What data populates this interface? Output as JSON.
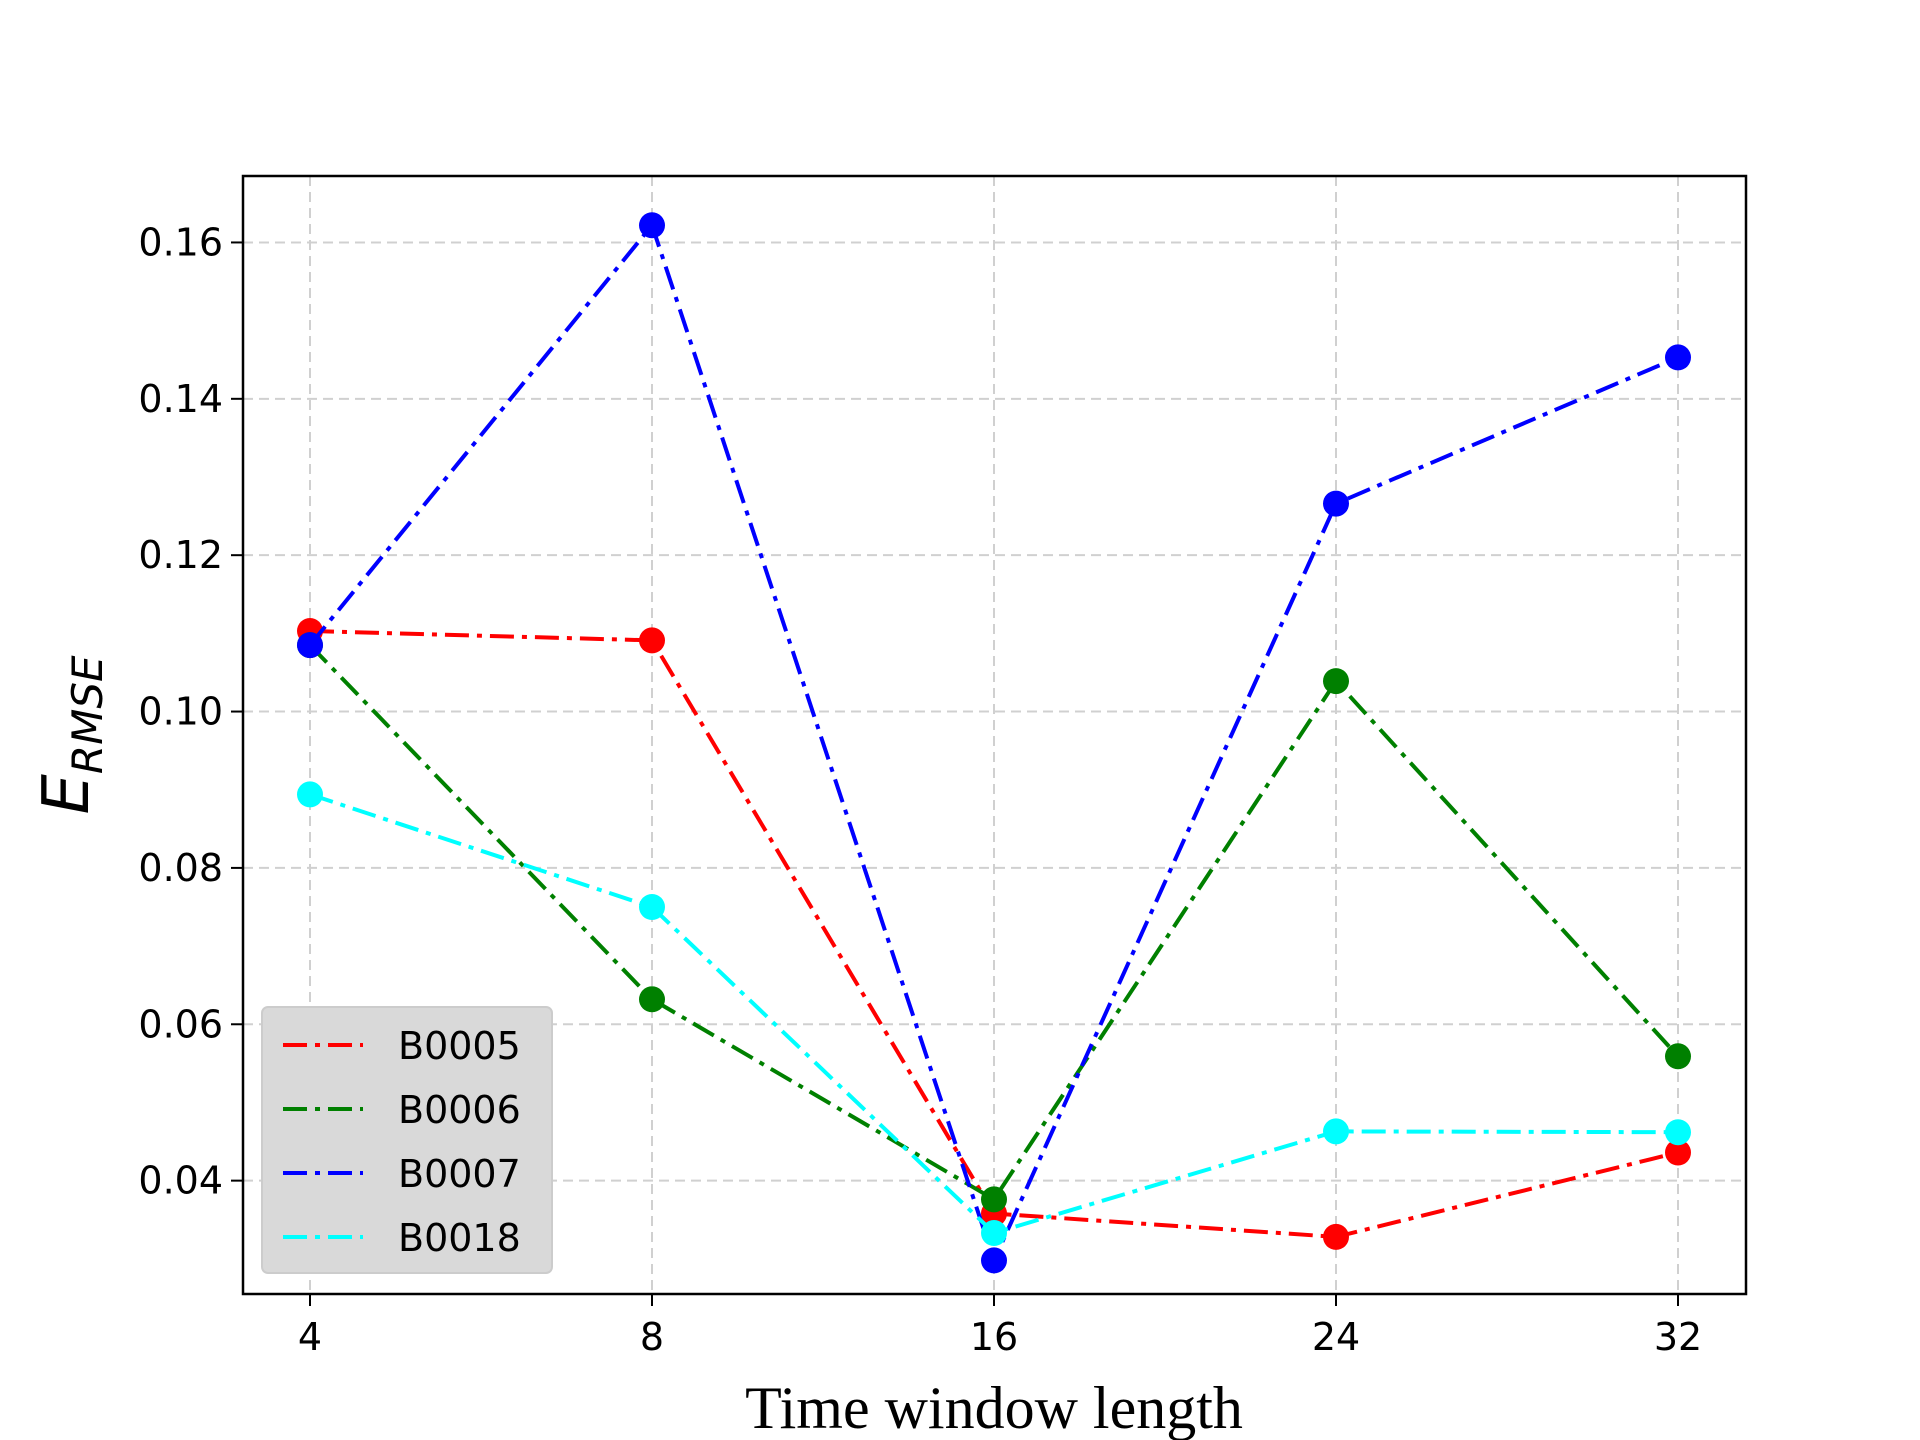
{
  "chart_data": {
    "type": "line",
    "title": "",
    "xlabel": "Time window length",
    "ylabel": {
      "main": "E",
      "sub": "RMSE"
    },
    "categories": [
      "4",
      "8",
      "16",
      "24",
      "32"
    ],
    "ylim": [
      0.0255,
      0.1685
    ],
    "yticks": [
      "0.04",
      "0.06",
      "0.08",
      "0.10",
      "0.12",
      "0.14",
      "0.16"
    ],
    "grid": true,
    "legend_position": "lower-left",
    "series": [
      {
        "name": "B0005",
        "color": "#ff0000",
        "values": [
          0.1103,
          0.1091,
          0.0358,
          0.0328,
          0.0436
        ]
      },
      {
        "name": "B0006",
        "color": "#008000",
        "values": [
          0.1085,
          0.0632,
          0.0376,
          0.1039,
          0.0559
        ]
      },
      {
        "name": "B0007",
        "color": "#0000ff",
        "values": [
          0.1085,
          0.1622,
          0.0298,
          0.1266,
          0.1453
        ]
      },
      {
        "name": "B0018",
        "color": "#00ffff",
        "values": [
          0.0894,
          0.075,
          0.0333,
          0.0463,
          0.0462
        ]
      }
    ]
  }
}
